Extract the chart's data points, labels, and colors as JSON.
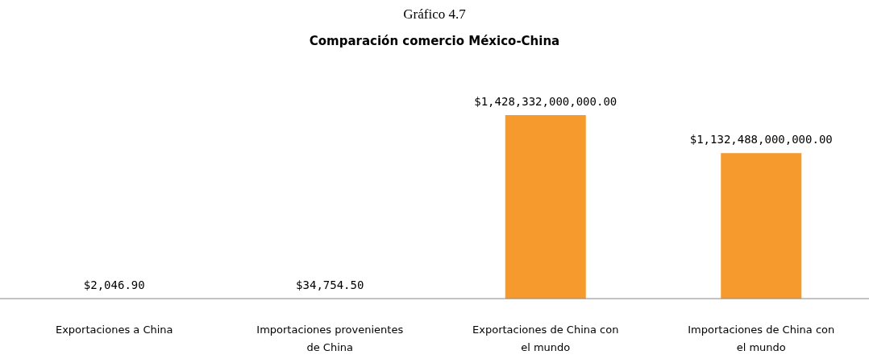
{
  "chart_data": {
    "type": "bar",
    "title": "Gráfico 4.7",
    "subtitle": "Comparación comercio México-China",
    "categories": [
      "Exportaciones a China",
      "Importaciones provenientes de China",
      "Exportaciones de China con el mundo",
      "Importaciones de China con el mundo"
    ],
    "values": [
      2046.9,
      34754.5,
      1428332000000,
      1132488000000
    ],
    "value_labels": [
      "$2,046.90",
      "$34,754.50",
      "$1,428,332,000,000.00",
      "$1,132,488,000,000.00"
    ],
    "color": "#f79a2e"
  }
}
